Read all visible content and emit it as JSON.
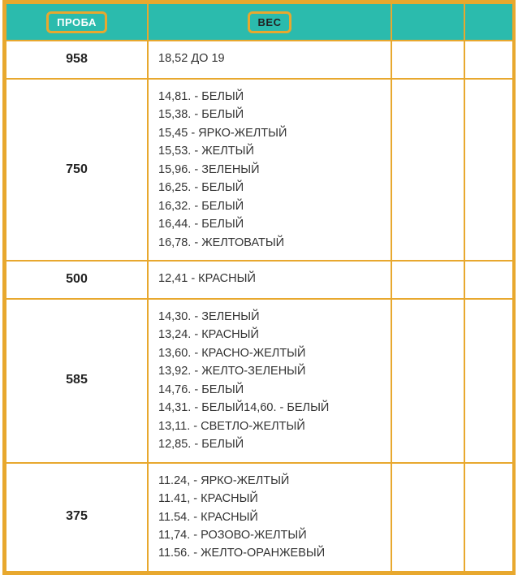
{
  "table": {
    "header": {
      "col1": "ПРОБА",
      "col2": "ВЕС"
    },
    "colors": {
      "headerBg": "#2bbbad",
      "border": "#e8a82e",
      "headerText1": "#ffffff",
      "headerText2": "#222222"
    },
    "rows": [
      {
        "proba": "958",
        "ves": "18,52 ДО 19"
      },
      {
        "proba": "750",
        "ves": "14,81. - БЕЛЫЙ\n15,38. - БЕЛЫЙ\n15,45 - ЯРКО-ЖЕЛТЫЙ\n15,53. - ЖЕЛТЫЙ\n15,96. - ЗЕЛЕНЫЙ\n16,25. - БЕЛЫЙ\n16,32. - БЕЛЫЙ\n16,44. - БЕЛЫЙ\n16,78. - ЖЕЛТОВАТЫЙ"
      },
      {
        "proba": "500",
        "ves": "12,41 - КРАСНЫЙ"
      },
      {
        "proba": "585",
        "ves": "14,30. - ЗЕЛЕНЫЙ\n13,24. - КРАСНЫЙ\n13,60. - КРАСНО-ЖЕЛТЫЙ\n13,92. - ЖЕЛТО-ЗЕЛЕНЫЙ\n14,76. - БЕЛЫЙ\n14,31. - БЕЛЫЙ14,60. - БЕЛЫЙ\n13,11. - СВЕТЛО-ЖЕЛТЫЙ\n12,85. - БЕЛЫЙ"
      },
      {
        "proba": "375",
        "ves": "11.24, - ЯРКО-ЖЕЛТЫЙ\n11.41, - КРАСНЫЙ\n11.54. - КРАСНЫЙ\n11,74. - РОЗОВО-ЖЕЛТЫЙ\n11.56. - ЖЕЛТО-ОРАНЖЕВЫЙ"
      }
    ]
  }
}
